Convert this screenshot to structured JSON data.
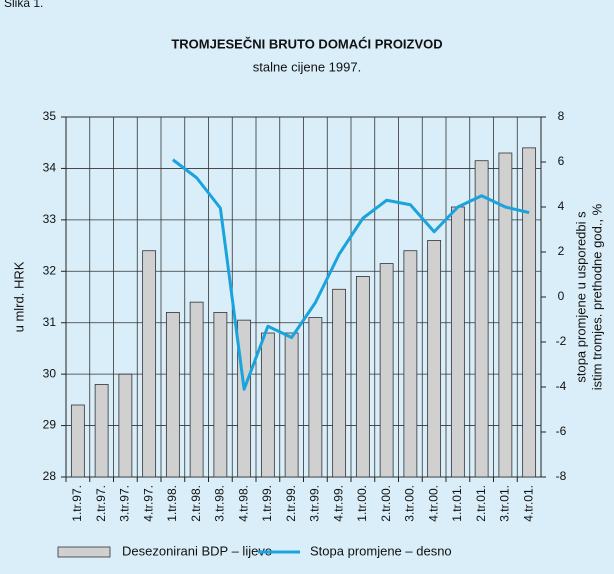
{
  "chart_data": {
    "type": "bar",
    "label": "Slika 1.",
    "title": "TROMJESEČNI BRUTO DOMAĆI PROIZVOD",
    "subtitle": "stalne cijene 1997.",
    "ylabel": "u mlrd. HRK",
    "y2label": [
      "stopa promjene u usporedbi s",
      "istim tromjes. prethodne god., %"
    ],
    "categories": [
      "1.tr.97.",
      "2.tr.97.",
      "3.tr.97.",
      "4.tr.97.",
      "1.tr.98.",
      "2.tr.98.",
      "3.tr.98.",
      "4.tr.98.",
      "1.tr.99.",
      "2.tr.99.",
      "3.tr.99.",
      "4.tr.99.",
      "1.tr.00.",
      "2.tr.00.",
      "3.tr.00.",
      "4.tr.00.",
      "1.tr.01.",
      "2.tr.01.",
      "3.tr.01.",
      "4.tr.01."
    ],
    "series": [
      {
        "name": "Desezonirani BDP – lijevo",
        "type": "bar",
        "color": "#d0d0d0",
        "values": [
          29.4,
          29.8,
          30.0,
          32.4,
          31.2,
          31.4,
          31.2,
          31.05,
          30.8,
          30.8,
          31.1,
          31.65,
          31.9,
          32.15,
          32.4,
          32.6,
          33.25,
          34.15,
          34.3,
          34.4
        ]
      },
      {
        "name": "Stopa promjene – desno",
        "type": "line",
        "axis": "y2",
        "color": "#1aa3dd",
        "values": [
          null,
          null,
          null,
          null,
          6.1,
          5.3,
          3.95,
          -4.1,
          -1.3,
          -1.8,
          -0.25,
          1.9,
          3.5,
          4.3,
          4.1,
          2.9,
          4.0,
          4.5,
          4.0,
          3.75
        ]
      }
    ],
    "ylim": [
      28,
      35
    ],
    "yticks": [
      28,
      29,
      30,
      31,
      32,
      33,
      34,
      35
    ],
    "y2lim": [
      -8,
      8
    ],
    "y2ticks": [
      -8,
      -6,
      -4,
      -2,
      0,
      2,
      4,
      6,
      8
    ],
    "grid": true,
    "legend": "bottom"
  }
}
